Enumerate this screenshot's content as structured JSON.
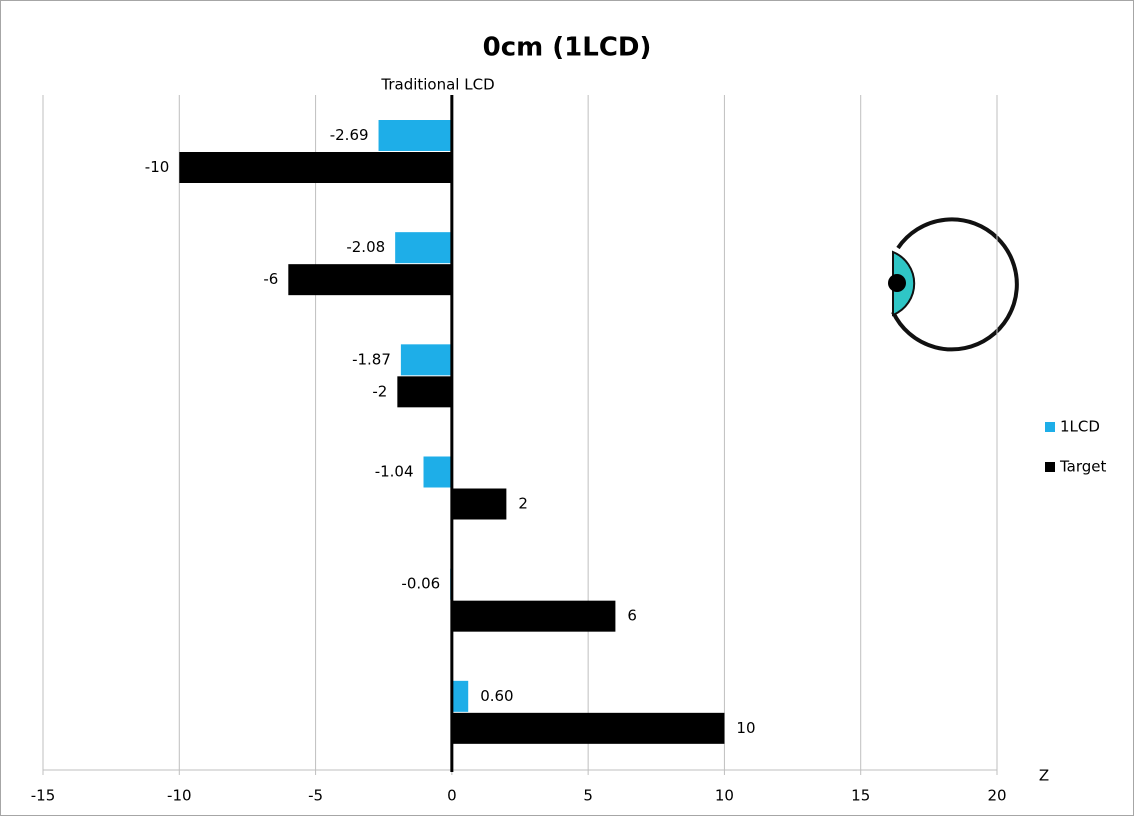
{
  "chart_data": {
    "type": "barh",
    "title": "0cm (1LCD)",
    "annotation": "Traditional LCD",
    "xlabel": "Z",
    "categories": [
      null,
      null,
      null,
      null,
      null,
      null
    ],
    "series": [
      {
        "name": "1LCD",
        "color": "#1eaee8",
        "values": [
          -2.69,
          -2.08,
          -1.87,
          -1.04,
          -0.06,
          0.6
        ],
        "value_labels": [
          "-2.69",
          "-2.08",
          "-1.87",
          "-1.04",
          "-0.06",
          "0.60"
        ]
      },
      {
        "name": "Target",
        "color": "#000000",
        "values": [
          -10,
          -6,
          -2,
          2,
          6,
          10
        ]
      }
    ],
    "xlim": [
      -15,
      20
    ],
    "xticks": [
      -15,
      -10,
      -5,
      0,
      5,
      10,
      15,
      20
    ],
    "grid": true
  }
}
